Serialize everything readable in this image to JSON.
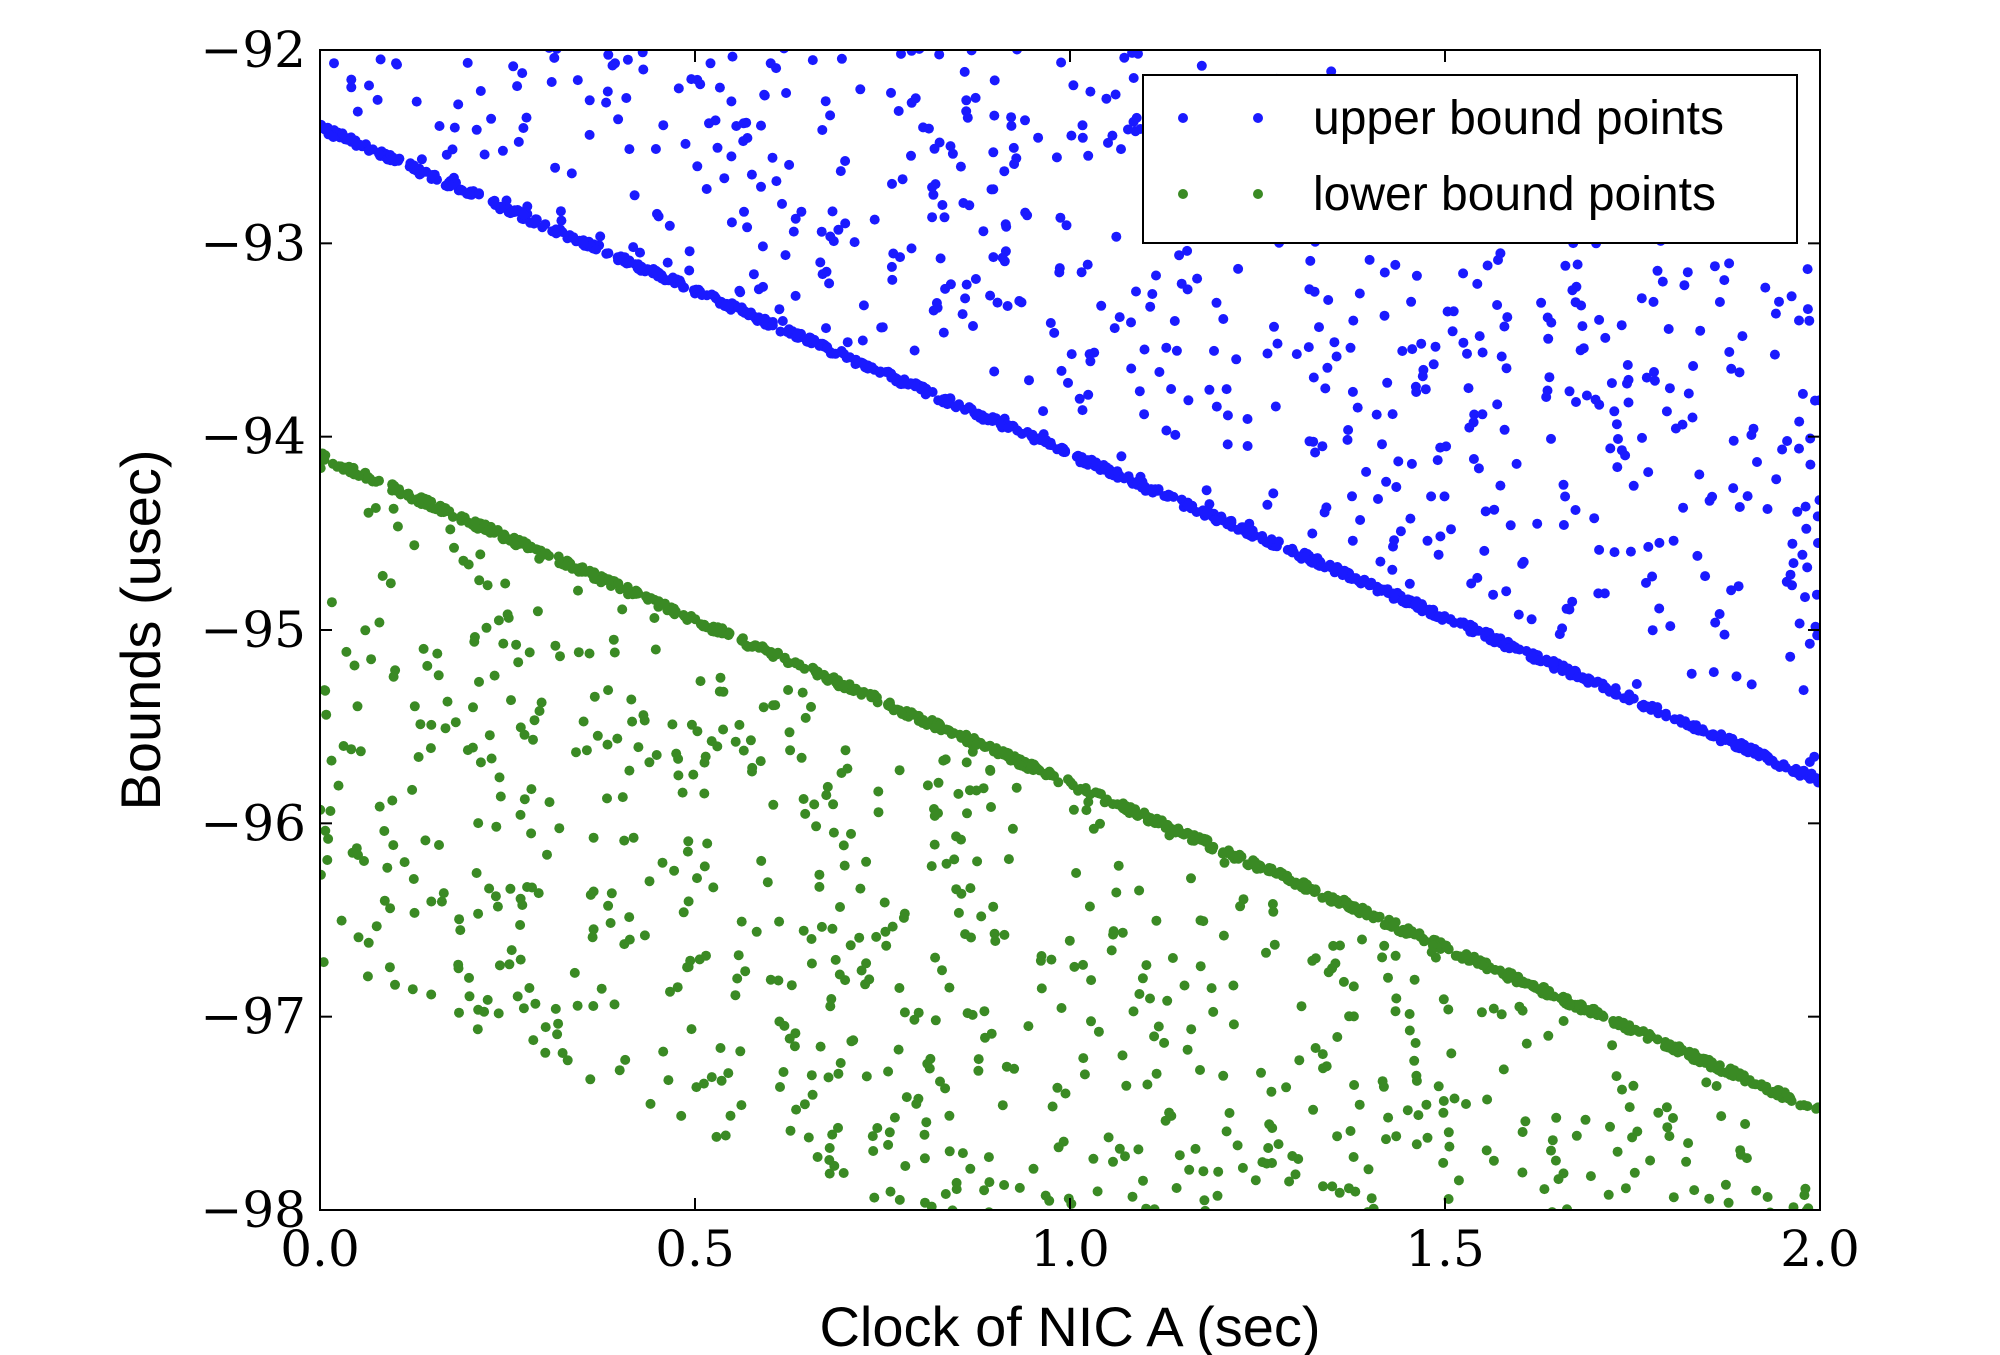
{
  "chart_data": {
    "type": "scatter",
    "title": "",
    "xlabel": "Clock of NIC A (sec)",
    "ylabel": "Bounds (usec)",
    "xlim": [
      0.0,
      2.0
    ],
    "ylim": [
      -98,
      -92
    ],
    "xticks": [
      0.0,
      0.5,
      1.0,
      1.5,
      2.0
    ],
    "xtick_labels": [
      "0.0",
      "0.5",
      "1.0",
      "1.5",
      "2.0"
    ],
    "yticks": [
      -92,
      -93,
      -94,
      -95,
      -96,
      -97,
      -98
    ],
    "ytick_labels": [
      "−92",
      "−93",
      "−94",
      "−95",
      "−96",
      "−97",
      "−98"
    ],
    "grid": false,
    "legend": {
      "position": "top-right"
    },
    "series": [
      {
        "name": "upper bound points",
        "color": "#1a1aff",
        "trend": {
          "x": [
            0.0,
            2.0
          ],
          "y": [
            -92.42,
            -95.8
          ]
        },
        "scatter_side": "above",
        "approx_count": 1800
      },
      {
        "name": "lower bound points",
        "color": "#3a8a24",
        "trend": {
          "x": [
            0.0,
            2.0
          ],
          "y": [
            -94.08,
            -97.47
          ]
        },
        "scatter_side": "below",
        "approx_count": 1800
      }
    ]
  }
}
